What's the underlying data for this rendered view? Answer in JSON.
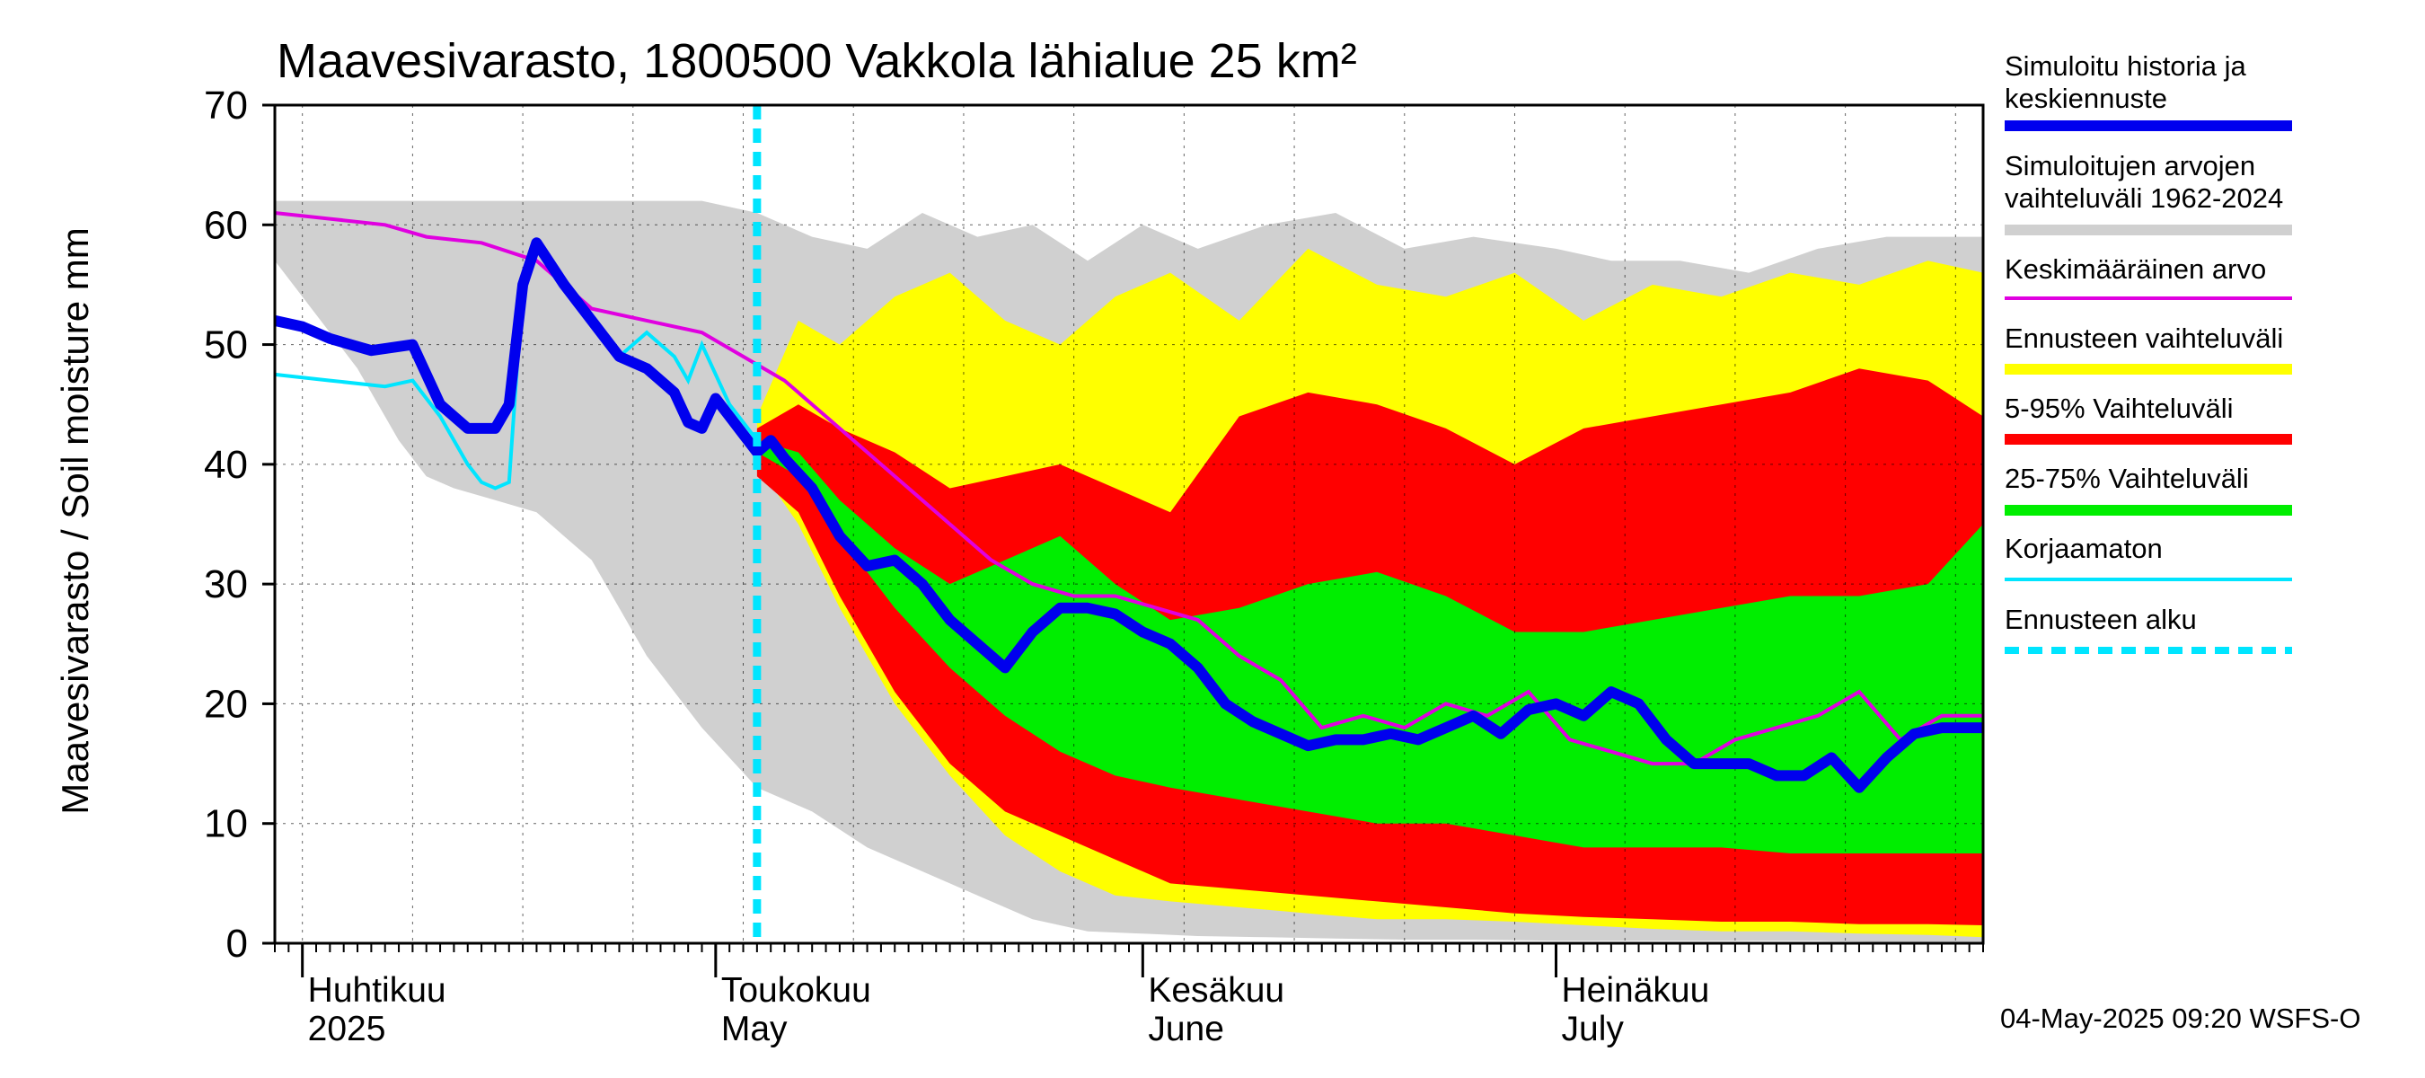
{
  "chart_data": {
    "type": "area",
    "title": "Maavesivarasto, 1800500 Vakkola lähialue 25 km²",
    "ylabel": "Maavesivarasto / Soil moisture   mm",
    "ylim": [
      0,
      70
    ],
    "yticks": [
      "0",
      "10",
      "20",
      "30",
      "40",
      "50",
      "60",
      "70"
    ],
    "x_start": "2025-03-30",
    "x_end": "2025-08-01",
    "month_labels": [
      {
        "line1": "Huhtikuu",
        "line2": "2025",
        "date": "2025-04-01"
      },
      {
        "line1": "Toukokuu",
        "line2": "May",
        "date": "2025-05-01"
      },
      {
        "line1": "Kesäkuu",
        "line2": "June",
        "date": "2025-06-01"
      },
      {
        "line1": "Heinäkuu",
        "line2": "July",
        "date": "2025-07-01"
      }
    ],
    "forecast_start": "2025-05-04",
    "legend": [
      {
        "label": "Simuloitu historia ja keskiennuste",
        "color": "#0000ee",
        "style": "thick"
      },
      {
        "label": "Simuloitujen arvojen vaihteluväli 1962-2024",
        "color": "#d0d0d0",
        "style": "thick"
      },
      {
        "label": "Keskimääräinen arvo",
        "color": "#e000e0",
        "style": "thin"
      },
      {
        "label": "Ennusteen vaihteluväli",
        "color": "#ffff00",
        "style": "thick"
      },
      {
        "label": "5-95% Vaihteluväli",
        "color": "#ff0000",
        "style": "thick"
      },
      {
        "label": "25-75% Vaihteluväli",
        "color": "#00ee00",
        "style": "thick"
      },
      {
        "label": "Korjaamaton",
        "color": "#00e5ff",
        "style": "thin"
      },
      {
        "label": "Ennusteen alku",
        "color": "#00e5ff",
        "style": "dashed"
      }
    ],
    "footer": "04-May-2025 09:20 WSFS-O",
    "series": {
      "historical_range": {
        "x": [
          "2025-03-30",
          "2025-04-05",
          "2025-04-08",
          "2025-04-10",
          "2025-04-12",
          "2025-04-15",
          "2025-04-18",
          "2025-04-22",
          "2025-04-26",
          "2025-04-30",
          "2025-05-04",
          "2025-05-08",
          "2025-05-12",
          "2025-05-16",
          "2025-05-20",
          "2025-05-24",
          "2025-05-28",
          "2025-06-01",
          "2025-06-05",
          "2025-06-10",
          "2025-06-15",
          "2025-06-20",
          "2025-06-25",
          "2025-07-01",
          "2025-07-05",
          "2025-07-10",
          "2025-07-15",
          "2025-07-20",
          "2025-07-25",
          "2025-08-01"
        ],
        "upper": [
          62,
          62,
          62,
          62,
          62,
          62,
          62,
          62,
          62,
          62,
          61,
          59,
          58,
          61,
          59,
          60,
          57,
          60,
          58,
          60,
          61,
          58,
          59,
          58,
          57,
          57,
          56,
          58,
          59,
          59
        ],
        "lower": [
          57,
          48,
          42,
          39,
          38,
          37,
          36,
          32,
          24,
          18,
          13,
          11,
          8,
          6,
          4,
          2,
          1,
          0.8,
          0.6,
          0.5,
          0.4,
          0.3,
          0.3,
          0.2,
          0.2,
          0.2,
          0.2,
          0.2,
          0.1,
          0.1
        ]
      },
      "forecast_range": {
        "x": [
          "2025-05-04",
          "2025-05-07",
          "2025-05-10",
          "2025-05-14",
          "2025-05-18",
          "2025-05-22",
          "2025-05-26",
          "2025-05-30",
          "2025-06-03",
          "2025-06-08",
          "2025-06-13",
          "2025-06-18",
          "2025-06-23",
          "2025-06-28",
          "2025-07-03",
          "2025-07-08",
          "2025-07-13",
          "2025-07-18",
          "2025-07-23",
          "2025-07-28",
          "2025-08-01"
        ],
        "upper": [
          44,
          52,
          50,
          54,
          56,
          52,
          50,
          54,
          56,
          52,
          58,
          55,
          54,
          56,
          52,
          55,
          54,
          56,
          55,
          57,
          56
        ],
        "lower": [
          40,
          35,
          28,
          20,
          14,
          9,
          6,
          4,
          3.5,
          3,
          2.5,
          2,
          2,
          1.8,
          1.5,
          1.2,
          1,
          1,
          0.8,
          0.7,
          0.5
        ]
      },
      "p5_95": {
        "x": [
          "2025-05-04",
          "2025-05-07",
          "2025-05-10",
          "2025-05-14",
          "2025-05-18",
          "2025-05-22",
          "2025-05-26",
          "2025-05-30",
          "2025-06-03",
          "2025-06-08",
          "2025-06-13",
          "2025-06-18",
          "2025-06-23",
          "2025-06-28",
          "2025-07-03",
          "2025-07-08",
          "2025-07-13",
          "2025-07-18",
          "2025-07-23",
          "2025-07-28",
          "2025-08-01"
        ],
        "upper": [
          43,
          45,
          43,
          41,
          38,
          39,
          40,
          38,
          36,
          44,
          46,
          45,
          43,
          40,
          43,
          44,
          45,
          46,
          48,
          47,
          44
        ],
        "lower": [
          39,
          36,
          29,
          21,
          15,
          11,
          9,
          7,
          5,
          4.5,
          4,
          3.5,
          3,
          2.5,
          2.2,
          2,
          1.8,
          1.8,
          1.6,
          1.6,
          1.5
        ]
      },
      "p25_75": {
        "x": [
          "2025-05-04",
          "2025-05-07",
          "2025-05-10",
          "2025-05-14",
          "2025-05-18",
          "2025-05-22",
          "2025-05-26",
          "2025-05-30",
          "2025-06-03",
          "2025-06-08",
          "2025-06-13",
          "2025-06-18",
          "2025-06-23",
          "2025-06-28",
          "2025-07-03",
          "2025-07-08",
          "2025-07-13",
          "2025-07-18",
          "2025-07-23",
          "2025-07-28",
          "2025-08-01"
        ],
        "upper": [
          42,
          41,
          37,
          33,
          30,
          32,
          34,
          30,
          27,
          28,
          30,
          31,
          29,
          26,
          26,
          27,
          28,
          29,
          29,
          30,
          35
        ],
        "lower": [
          41,
          39,
          34,
          28,
          23,
          19,
          16,
          14,
          13,
          12,
          11,
          10,
          10,
          9,
          8,
          8,
          8,
          7.5,
          7.5,
          7.5,
          7.5
        ]
      },
      "mean": {
        "x": [
          "2025-03-30",
          "2025-04-03",
          "2025-04-07",
          "2025-04-10",
          "2025-04-14",
          "2025-04-18",
          "2025-04-22",
          "2025-04-26",
          "2025-04-30",
          "2025-05-03",
          "2025-05-06",
          "2025-05-09",
          "2025-05-12",
          "2025-05-15",
          "2025-05-18",
          "2025-05-21",
          "2025-05-24",
          "2025-05-27",
          "2025-05-30",
          "2025-06-02",
          "2025-06-05",
          "2025-06-08",
          "2025-06-11",
          "2025-06-14",
          "2025-06-17",
          "2025-06-20",
          "2025-06-23",
          "2025-06-26",
          "2025-06-29",
          "2025-07-02",
          "2025-07-05",
          "2025-07-08",
          "2025-07-11",
          "2025-07-14",
          "2025-07-17",
          "2025-07-20",
          "2025-07-23",
          "2025-07-26",
          "2025-07-29",
          "2025-08-01"
        ],
        "y": [
          61,
          60.5,
          60,
          59,
          58.5,
          57,
          53,
          52,
          51,
          49,
          47,
          44,
          41,
          38,
          35,
          32,
          30,
          29,
          29,
          28,
          27,
          24,
          22,
          18,
          19,
          18,
          20,
          19,
          21,
          17,
          16,
          15,
          15,
          17,
          18,
          19,
          21,
          17,
          19,
          19
        ]
      },
      "simulated": {
        "x": [
          "2025-03-30",
          "2025-04-01",
          "2025-04-03",
          "2025-04-06",
          "2025-04-09",
          "2025-04-11",
          "2025-04-13",
          "2025-04-15",
          "2025-04-16",
          "2025-04-17",
          "2025-04-18",
          "2025-04-20",
          "2025-04-22",
          "2025-04-24",
          "2025-04-26",
          "2025-04-28",
          "2025-04-29",
          "2025-04-30",
          "2025-05-01",
          "2025-05-02",
          "2025-05-03",
          "2025-05-04",
          "2025-05-05",
          "2025-05-06",
          "2025-05-08",
          "2025-05-10",
          "2025-05-12",
          "2025-05-14",
          "2025-05-16",
          "2025-05-18",
          "2025-05-20",
          "2025-05-22",
          "2025-05-24",
          "2025-05-26",
          "2025-05-28",
          "2025-05-30",
          "2025-06-01",
          "2025-06-03",
          "2025-06-05",
          "2025-06-07",
          "2025-06-09",
          "2025-06-11",
          "2025-06-13",
          "2025-06-15",
          "2025-06-17",
          "2025-06-19",
          "2025-06-21",
          "2025-06-23",
          "2025-06-25",
          "2025-06-27",
          "2025-06-29",
          "2025-07-01",
          "2025-07-03",
          "2025-07-05",
          "2025-07-07",
          "2025-07-09",
          "2025-07-11",
          "2025-07-13",
          "2025-07-15",
          "2025-07-17",
          "2025-07-19",
          "2025-07-21",
          "2025-07-23",
          "2025-07-25",
          "2025-07-27",
          "2025-07-29",
          "2025-07-31",
          "2025-08-01"
        ],
        "y": [
          52,
          51.5,
          50.5,
          49.5,
          50,
          45,
          43,
          43,
          45,
          55,
          58.5,
          55,
          52,
          49,
          48,
          46,
          43.5,
          43,
          45.5,
          44,
          42.5,
          41,
          42,
          40.5,
          38,
          34,
          31.5,
          32,
          30,
          27,
          25,
          23,
          26,
          28,
          28,
          27.5,
          26,
          25,
          23,
          20,
          18.5,
          17.5,
          16.5,
          17,
          17,
          17.5,
          17,
          18,
          19,
          17.5,
          19.5,
          20,
          19,
          21,
          20,
          17,
          15,
          15,
          15,
          14,
          14,
          15.5,
          13,
          15.5,
          17.5,
          18,
          18,
          18
        ]
      },
      "uncorrected": {
        "x": [
          "2025-03-30",
          "2025-04-03",
          "2025-04-07",
          "2025-04-09",
          "2025-04-11",
          "2025-04-13",
          "2025-04-14",
          "2025-04-15",
          "2025-04-16",
          "2025-04-17",
          "2025-04-18",
          "2025-04-20",
          "2025-04-22",
          "2025-04-24",
          "2025-04-26",
          "2025-04-27",
          "2025-04-28",
          "2025-04-29",
          "2025-04-30",
          "2025-05-02",
          "2025-05-04"
        ],
        "y": [
          47.5,
          47,
          46.5,
          47,
          44,
          40,
          38.5,
          38,
          38.5,
          55,
          58,
          55,
          52,
          49,
          51,
          50,
          49,
          47,
          50,
          45,
          42
        ]
      }
    }
  }
}
